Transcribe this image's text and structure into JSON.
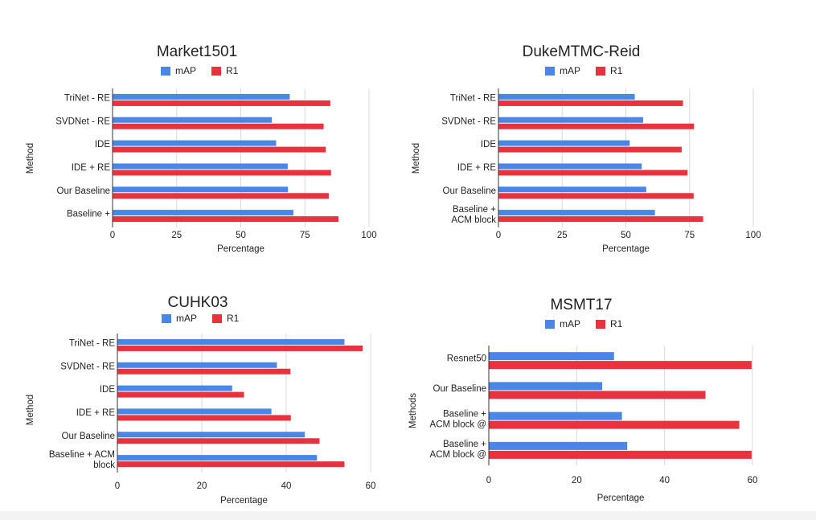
{
  "colors": {
    "map": "#4a86e8",
    "r1": "#e8333f"
  },
  "chart_data": [
    {
      "type": "bar",
      "orientation": "horizontal",
      "title": "Market1501",
      "xlabel": "Percentage",
      "ylabel": "Method",
      "xlim": [
        0,
        100
      ],
      "xticks": [
        0,
        25,
        50,
        75,
        100
      ],
      "legend": "top",
      "grid": true,
      "categories": [
        [
          "TriNet - RE"
        ],
        [
          "SVDNet - RE"
        ],
        [
          "IDE"
        ],
        [
          "IDE + RE"
        ],
        [
          "Our Baseline"
        ],
        [
          "Baseline +"
        ]
      ],
      "series": [
        {
          "name": "mAP",
          "values": [
            69.1,
            62.1,
            63.8,
            68.3,
            68.4,
            70.5
          ]
        },
        {
          "name": "R1",
          "values": [
            84.9,
            82.3,
            83.1,
            85.2,
            84.3,
            88.1
          ]
        }
      ]
    },
    {
      "type": "bar",
      "orientation": "horizontal",
      "title": "DukeMTMC-Reid",
      "xlabel": "Percentage",
      "ylabel": "Method",
      "xlim": [
        0,
        100
      ],
      "xticks": [
        0,
        25,
        50,
        75,
        100
      ],
      "legend": "top",
      "grid": true,
      "categories": [
        [
          "TriNet - RE"
        ],
        [
          "SVDNet - RE"
        ],
        [
          "IDE"
        ],
        [
          "IDE + RE"
        ],
        [
          "Our Baseline"
        ],
        [
          "Baseline +",
          "ACM block"
        ]
      ],
      "series": [
        {
          "name": "mAP",
          "values": [
            53.5,
            56.8,
            51.5,
            56.2,
            58.0,
            61.4
          ]
        },
        {
          "name": "R1",
          "values": [
            72.4,
            76.7,
            71.9,
            74.2,
            76.6,
            80.3
          ]
        }
      ]
    },
    {
      "type": "bar",
      "orientation": "horizontal",
      "title": "CUHK03",
      "xlabel": "Percentage",
      "ylabel": "Method",
      "xlim": [
        0,
        60
      ],
      "xticks": [
        0,
        20,
        40,
        60
      ],
      "legend": "top",
      "grid": true,
      "categories": [
        [
          "TriNet - RE"
        ],
        [
          "SVDNet - RE"
        ],
        [
          "IDE"
        ],
        [
          "IDE + RE"
        ],
        [
          "Our Baseline"
        ],
        [
          "Baseline + ACM",
          "block"
        ]
      ],
      "series": [
        {
          "name": "mAP",
          "values": [
            53.8,
            37.8,
            27.2,
            36.5,
            44.4,
            47.3
          ]
        },
        {
          "name": "R1",
          "values": [
            58.1,
            41.0,
            30.0,
            41.1,
            47.9,
            53.8
          ]
        }
      ]
    },
    {
      "type": "bar",
      "orientation": "horizontal",
      "title": "MSMT17",
      "xlabel": "Percentage",
      "ylabel": "Methods",
      "xlim": [
        0,
        60
      ],
      "xticks": [
        0,
        20,
        40,
        60
      ],
      "legend": "top",
      "grid": true,
      "categories": [
        [
          "Resnet50"
        ],
        [
          "Our Baseline"
        ],
        [
          "Baseline +",
          "ACM block @"
        ],
        [
          "Baseline +",
          "ACM block @"
        ]
      ],
      "series": [
        {
          "name": "mAP",
          "values": [
            28.5,
            25.8,
            30.3,
            31.5
          ]
        },
        {
          "name": "R1",
          "values": [
            59.8,
            49.3,
            57.0,
            59.8
          ]
        }
      ]
    }
  ]
}
